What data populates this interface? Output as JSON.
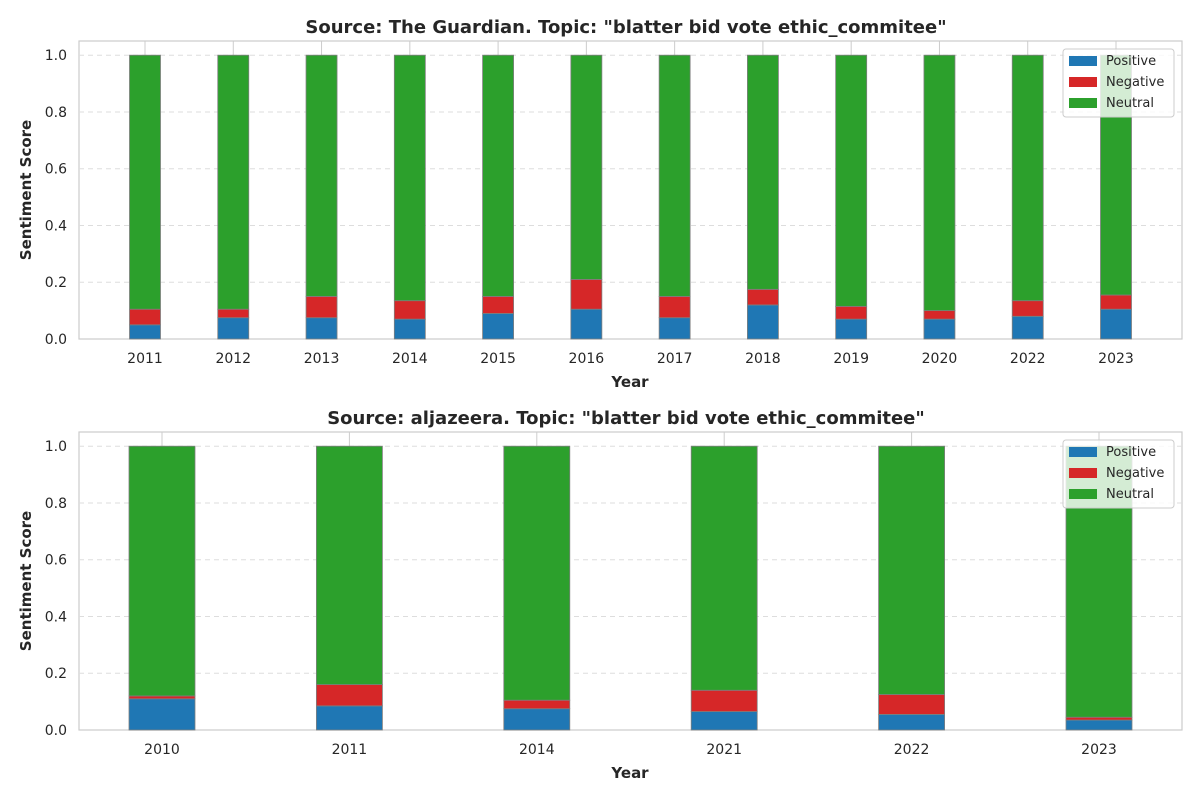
{
  "chart_data": [
    {
      "type": "bar",
      "stacked": true,
      "title": "Source: The Guardian. Topic: \"blatter bid vote ethic_commitee\"",
      "xlabel": "Year",
      "ylabel": "Sentiment Score",
      "ylim": [
        0,
        1.05
      ],
      "yticks": [
        "0.0",
        "0.2",
        "0.4",
        "0.6",
        "0.8",
        "1.0"
      ],
      "grid": "y-dashed",
      "legend_position": "top-right",
      "categories": [
        "2011",
        "2012",
        "2013",
        "2014",
        "2015",
        "2016",
        "2017",
        "2018",
        "2019",
        "2020",
        "2022",
        "2023"
      ],
      "series": [
        {
          "name": "Positive",
          "color": "#1f77b4",
          "values": [
            0.05,
            0.075,
            0.075,
            0.07,
            0.09,
            0.105,
            0.075,
            0.12,
            0.07,
            0.07,
            0.08,
            0.105
          ]
        },
        {
          "name": "Negative",
          "color": "#d62728",
          "values": [
            0.055,
            0.03,
            0.075,
            0.065,
            0.06,
            0.105,
            0.075,
            0.055,
            0.045,
            0.03,
            0.055,
            0.05
          ]
        },
        {
          "name": "Neutral",
          "color": "#2ca02c",
          "values": [
            0.895,
            0.895,
            0.85,
            0.865,
            0.85,
            0.79,
            0.85,
            0.825,
            0.885,
            0.9,
            0.865,
            0.845
          ]
        }
      ]
    },
    {
      "type": "bar",
      "stacked": true,
      "title": "Source: aljazeera. Topic: \"blatter bid vote ethic_commitee\"",
      "xlabel": "Year",
      "ylabel": "Sentiment Score",
      "ylim": [
        0,
        1.05
      ],
      "yticks": [
        "0.0",
        "0.2",
        "0.4",
        "0.6",
        "0.8",
        "1.0"
      ],
      "grid": "y-dashed",
      "legend_position": "top-right",
      "categories": [
        "2010",
        "2011",
        "2014",
        "2021",
        "2022",
        "2023"
      ],
      "series": [
        {
          "name": "Positive",
          "color": "#1f77b4",
          "values": [
            0.11,
            0.085,
            0.075,
            0.065,
            0.055,
            0.035
          ]
        },
        {
          "name": "Negative",
          "color": "#d62728",
          "values": [
            0.01,
            0.075,
            0.03,
            0.075,
            0.07,
            0.01
          ]
        },
        {
          "name": "Neutral",
          "color": "#2ca02c",
          "values": [
            0.88,
            0.84,
            0.895,
            0.86,
            0.875,
            0.955
          ]
        }
      ]
    }
  ]
}
